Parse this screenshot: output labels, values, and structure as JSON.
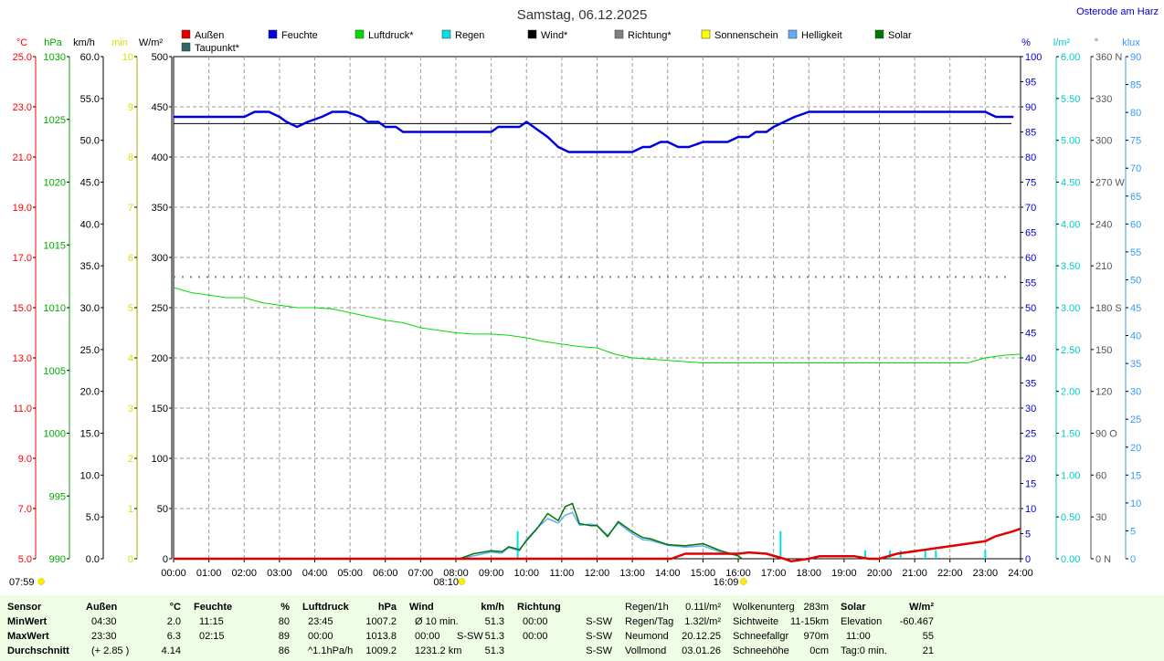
{
  "chart_data": {
    "type": "line",
    "title": "Samstag, 06.12.2025",
    "location": "Osterode am Harz",
    "legend": [
      {
        "name": "Außen",
        "color": "#e00000"
      },
      {
        "name": "Feuchte",
        "color": "#0000dd"
      },
      {
        "name": "Luftdruck*",
        "color": "#00dd00"
      },
      {
        "name": "Regen",
        "color": "#00e0e0"
      },
      {
        "name": "Wind*",
        "color": "#000000"
      },
      {
        "name": "Richtung*",
        "color": "#808080"
      },
      {
        "name": "Sonnenschein",
        "color": "#ffff00"
      },
      {
        "name": "Helligkeit",
        "color": "#66aaff"
      },
      {
        "name": "Solar",
        "color": "#007700"
      },
      {
        "name": "Taupunkt*",
        "color": "#336666"
      }
    ],
    "left_axes": [
      {
        "unit": "°C",
        "color": "#ff0000",
        "ticks": [
          "25.0",
          "23.0",
          "21.0",
          "19.0",
          "17.0",
          "15.0",
          "13.0",
          "11.0",
          "9.0",
          "7.0",
          "5.0"
        ]
      },
      {
        "unit": "hPa",
        "color": "#00aa00",
        "ticks": [
          "1030",
          "1025",
          "1020",
          "1015",
          "1010",
          "1005",
          "1000",
          "995",
          "990"
        ]
      },
      {
        "unit": "km/h",
        "color": "#000000",
        "ticks": [
          "60.0",
          "55.0",
          "50.0",
          "45.0",
          "40.0",
          "35.0",
          "30.0",
          "25.0",
          "20.0",
          "15.0",
          "10.0",
          "5.0",
          "0.0"
        ]
      },
      {
        "unit": "min",
        "color": "#dddd00",
        "ticks": [
          "10",
          "9",
          "8",
          "7",
          "6",
          "5",
          "4",
          "3",
          "2",
          "1",
          "0"
        ]
      },
      {
        "unit": "W/m²",
        "color": "#000000",
        "ticks": [
          "500",
          "450",
          "400",
          "350",
          "300",
          "250",
          "200",
          "150",
          "100",
          "50",
          "0"
        ]
      }
    ],
    "right_axes": [
      {
        "unit": "%",
        "color": "#0000cc",
        "ticks": [
          "100",
          "95",
          "90",
          "85",
          "80",
          "75",
          "70",
          "65",
          "60",
          "55",
          "50",
          "45",
          "40",
          "35",
          "30",
          "25",
          "20",
          "15",
          "10",
          "5",
          "0"
        ]
      },
      {
        "unit": "l/m²",
        "color": "#00cccc",
        "ticks": [
          "6.00",
          "5.50",
          "5.00",
          "4.50",
          "4.00",
          "3.50",
          "3.00",
          "2.50",
          "2.00",
          "1.50",
          "1.00",
          "0.50",
          "0.00"
        ]
      },
      {
        "unit": "°",
        "color": "#555555",
        "ticks": [
          "360 N",
          "330",
          "300",
          "270 W",
          "240",
          "210",
          "180 S",
          "150",
          "120",
          "90 O",
          "60",
          "30",
          "0 N"
        ]
      },
      {
        "unit": "klux",
        "color": "#3399ff",
        "ticks": [
          "90",
          "85",
          "80",
          "75",
          "70",
          "65",
          "60",
          "55",
          "50",
          "45",
          "40",
          "35",
          "30",
          "25",
          "20",
          "15",
          "10",
          "5",
          "0"
        ]
      }
    ],
    "x_ticks": [
      "00:00",
      "01:00",
      "02:00",
      "03:00",
      "04:00",
      "05:00",
      "06:00",
      "07:00",
      "08:00",
      "09:00",
      "10:00",
      "11:00",
      "12:00",
      "13:00",
      "14:00",
      "15:00",
      "16:00",
      "17:00",
      "18:00",
      "19:00",
      "20:00",
      "21:00",
      "22:00",
      "23:00",
      "24:00"
    ],
    "sun_markers": {
      "dawn": "07:59",
      "sunrise": "08:10",
      "sunset": "16:09"
    },
    "series": [
      {
        "name": "Feuchte",
        "unit": "%",
        "color": "#0000dd",
        "x": [
          0,
          1,
          2,
          2.3,
          2.7,
          3,
          3.2,
          3.5,
          3.8,
          4.2,
          4.5,
          4.9,
          5.3,
          5.5,
          5.8,
          6,
          6.3,
          6.5,
          7,
          8,
          9,
          9.2,
          9.8,
          10,
          10.2,
          10.4,
          10.6,
          10.9,
          11.2,
          11.5,
          12,
          12.5,
          13,
          13.3,
          13.5,
          13.8,
          14,
          14.3,
          14.6,
          15,
          15.3,
          15.7,
          16,
          16.3,
          16.5,
          16.8,
          17,
          17.3,
          17.6,
          18,
          19,
          20,
          21,
          22,
          23,
          23.3,
          23.5,
          23.8
        ],
        "y": [
          88,
          88,
          88,
          89,
          89,
          88,
          87,
          86,
          87,
          88,
          89,
          89,
          88,
          87,
          87,
          86,
          86,
          85,
          85,
          85,
          85,
          86,
          86,
          87,
          86,
          85,
          84,
          82,
          81,
          81,
          81,
          81,
          81,
          82,
          82,
          83,
          83,
          82,
          82,
          83,
          83,
          83,
          84,
          84,
          85,
          85,
          86,
          87,
          88,
          89,
          89,
          89,
          89,
          89,
          89,
          88,
          88,
          88
        ]
      },
      {
        "name": "Luftdruck*",
        "unit": "hPa",
        "color": "#00dd00",
        "x": [
          0,
          0.5,
          1,
          1.5,
          2,
          2.5,
          3,
          3.5,
          4,
          4.5,
          5,
          5.5,
          6,
          6.5,
          7,
          7.5,
          8,
          8.5,
          9,
          9.5,
          10,
          10.5,
          11,
          11.5,
          12,
          12.5,
          13,
          13.5,
          14,
          14.5,
          15,
          16,
          17,
          18,
          19,
          20,
          21,
          21.5,
          22,
          22.5,
          23,
          23.5,
          24
        ],
        "y": [
          1011.6,
          1011.2,
          1011.0,
          1010.8,
          1010.8,
          1010.4,
          1010.2,
          1010.0,
          1010.0,
          1009.9,
          1009.6,
          1009.3,
          1009.0,
          1008.8,
          1008.4,
          1008.2,
          1008.0,
          1007.9,
          1007.9,
          1007.8,
          1007.6,
          1007.3,
          1007.1,
          1006.9,
          1006.8,
          1006.3,
          1006.0,
          1005.9,
          1005.8,
          1005.7,
          1005.6,
          1005.6,
          1005.6,
          1005.6,
          1005.6,
          1005.6,
          1005.6,
          1005.6,
          1005.6,
          1005.6,
          1006.0,
          1006.2,
          1006.3
        ]
      },
      {
        "name": "Außen",
        "unit": "°C",
        "color": "#e00000",
        "x": [
          0,
          14.1,
          14.5,
          15,
          15.5,
          16,
          16.3,
          16.8,
          17.3,
          17.5,
          18,
          18.3,
          19,
          19.3,
          19.7,
          20,
          20.5,
          21,
          21.5,
          22,
          22.5,
          23,
          23.3,
          23.8,
          24
        ],
        "y": [
          5.0,
          5.0,
          5.2,
          5.2,
          5.2,
          5.2,
          5.25,
          5.2,
          5.0,
          4.9,
          5.0,
          5.1,
          5.1,
          5.1,
          5.0,
          5.0,
          5.2,
          5.3,
          5.4,
          5.5,
          5.6,
          5.7,
          5.9,
          6.1,
          6.2
        ]
      },
      {
        "name": "Solar",
        "unit": "W/m²",
        "color": "#007700",
        "x": [
          8.1,
          8.5,
          9,
          9.3,
          9.5,
          9.8,
          10,
          10.3,
          10.6,
          10.9,
          11.1,
          11.3,
          11.5,
          11.8,
          12,
          12.3,
          12.6,
          13,
          13.3,
          13.5,
          14,
          14.5,
          15,
          15.5,
          16,
          16.1
        ],
        "y": [
          0,
          5,
          8,
          7,
          12,
          9,
          18,
          30,
          45,
          38,
          52,
          55,
          35,
          33,
          33,
          22,
          37,
          27,
          21,
          20,
          14,
          13,
          15,
          8,
          3,
          0
        ]
      },
      {
        "name": "Helligkeit",
        "unit": "klux",
        "color": "#66aaff",
        "x": [
          8.1,
          8.5,
          9,
          9.3,
          9.5,
          9.8,
          10,
          10.3,
          10.6,
          10.9,
          11.1,
          11.3,
          11.5,
          11.8,
          12,
          12.3,
          12.6,
          13,
          13.3,
          13.5,
          14,
          14.5,
          15,
          15.5,
          16,
          16.1
        ],
        "y": [
          0,
          0.5,
          1.2,
          1,
          2,
          1.4,
          3.5,
          5.5,
          7.2,
          6.4,
          7.8,
          8.3,
          6,
          6.2,
          6,
          4.2,
          6.4,
          4.5,
          3.4,
          3.3,
          2.4,
          2.1,
          2.3,
          1.2,
          0.5,
          0
        ]
      }
    ],
    "reference_lines": [
      {
        "name": "Wind*",
        "value": 52.0,
        "unit": "km/h",
        "color": "#000000",
        "style": "solid"
      },
      {
        "name": "Richtung*",
        "value": 202,
        "unit": "°",
        "color": "#808080",
        "style": "dotted"
      }
    ],
    "rain_bars": {
      "unit": "l/m²",
      "color": "#00e0e0",
      "x": [
        9.75,
        17.2,
        19.6,
        20.3,
        20.6,
        21.3,
        21.6,
        23.0
      ],
      "y": [
        0.33,
        0.33,
        0.1,
        0.1,
        0.1,
        0.1,
        0.1,
        0.1
      ]
    }
  },
  "stats": {
    "headers": [
      {
        "label": "Sensor",
        "unit": ""
      },
      {
        "label": "Außen",
        "unit": "°C"
      },
      {
        "label": "Feuchte",
        "unit": "%"
      },
      {
        "label": "Luftdruck",
        "unit": "hPa"
      },
      {
        "label": "Wind",
        "unit": "km/h"
      },
      {
        "label": "Richtung",
        "unit": ""
      }
    ],
    "rows": [
      {
        "label": "MinWert",
        "aussen_time": "04:30",
        "aussen_val": "2.0",
        "feuchte_time": "11:15",
        "feuchte_val": "80",
        "druck_time": "23:45",
        "druck_val": "1007.2",
        "wind_time": "Ø 10 min.",
        "wind_dir": "",
        "wind_val": "51.3",
        "richt_time": "00:00",
        "richt_val": "S-SW"
      },
      {
        "label": "MaxWert",
        "aussen_time": "23:30",
        "aussen_val": "6.3",
        "feuchte_time": "02:15",
        "feuchte_val": "89",
        "druck_time": "00:00",
        "druck_val": "1013.8",
        "wind_time": "00:00",
        "wind_dir": "S-SW",
        "wind_val": "51.3",
        "richt_time": "00:00",
        "richt_val": "S-SW"
      },
      {
        "label": "Durchschnitt",
        "aussen_time": "(+ 2.85 )",
        "aussen_val": "4.14",
        "feuchte_time": "",
        "feuchte_val": "86",
        "druck_time": "^1.1hPa/h",
        "druck_val": "1009.2",
        "wind_time": "1231.2 km",
        "wind_dir": "",
        "wind_val": "51.3",
        "richt_time": "",
        "richt_val": "S-SW"
      }
    ],
    "misc_col1": [
      {
        "label": "Regen/1h",
        "value": "0.11l/m²"
      },
      {
        "label": "Regen/Tag",
        "value": "1.32l/m²"
      },
      {
        "label": "Neumond",
        "value": "20.12.25"
      },
      {
        "label": "Vollmond",
        "value": "03.01.26"
      }
    ],
    "misc_col2": [
      {
        "label": "Wolkenunterg",
        "value": "283m"
      },
      {
        "label": "Sichtweite",
        "value": "11-15km"
      },
      {
        "label": "Schneefallgr",
        "value": "970m"
      },
      {
        "label": "Schneehöhe",
        "value": "0cm"
      }
    ],
    "solar": {
      "header": "Solar",
      "unit": "W/m²",
      "rows": [
        {
          "label": "Elevation",
          "value": "-60.467"
        },
        {
          "label": "11:00",
          "value": "55"
        },
        {
          "label": "Tag:0 min.",
          "value": "21"
        }
      ]
    }
  }
}
